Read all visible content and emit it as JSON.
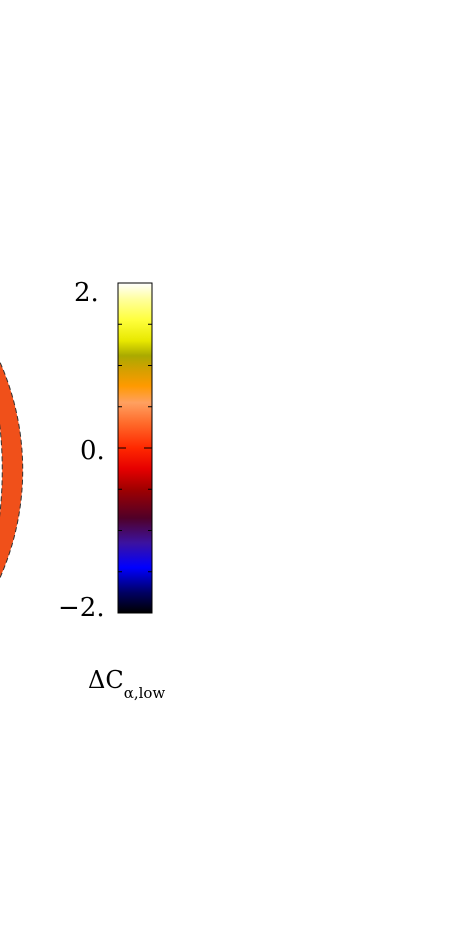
{
  "colorbar": {
    "ticks": [
      {
        "value": 2.0,
        "label": "2."
      },
      {
        "value": 0.0,
        "label": "0."
      },
      {
        "value": -2.0,
        "label": "−2."
      }
    ],
    "range": [
      -2.0,
      2.0
    ],
    "stops": [
      {
        "value": -2.0,
        "color": "#000000"
      },
      {
        "value": -1.75,
        "color": "#000064"
      },
      {
        "value": -1.45,
        "color": "#0000ff"
      },
      {
        "value": -1.15,
        "color": "#3c12a0"
      },
      {
        "value": -0.85,
        "color": "#500028"
      },
      {
        "value": -0.5,
        "color": "#a00000"
      },
      {
        "value": -0.25,
        "color": "#e60000"
      },
      {
        "value": 0.0,
        "color": "#ff2800"
      },
      {
        "value": 0.3,
        "color": "#ff6a2a"
      },
      {
        "value": 0.55,
        "color": "#ffa060"
      },
      {
        "value": 0.75,
        "color": "#ff9a00"
      },
      {
        "value": 0.95,
        "color": "#d4a000"
      },
      {
        "value": 1.12,
        "color": "#aaaa00"
      },
      {
        "value": 1.3,
        "color": "#e8e800"
      },
      {
        "value": 1.55,
        "color": "#ffff3c"
      },
      {
        "value": 1.8,
        "color": "#ffff9c"
      },
      {
        "value": 2.0,
        "color": "#ffffff"
      }
    ]
  },
  "quantity": {
    "symbol": "ΔC",
    "subscript": "α,low"
  },
  "shell": {
    "background_color": "#f0501a",
    "contour_color": "#ffffff"
  }
}
